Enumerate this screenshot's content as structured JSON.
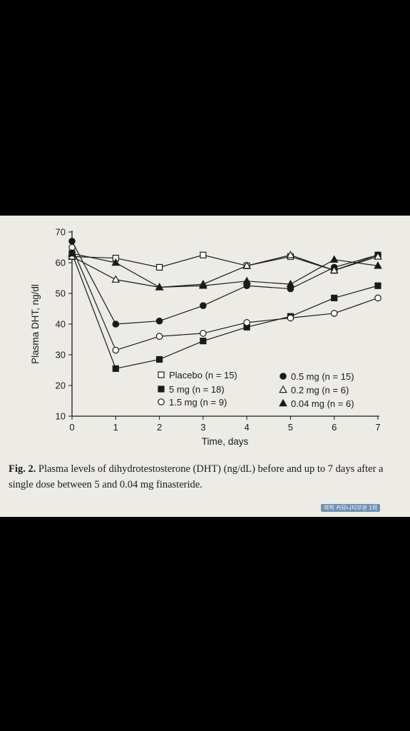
{
  "colors": {
    "background": "#000000",
    "paper": "#ecebe6",
    "ink": "#1a1a1a"
  },
  "chart_data": {
    "type": "line",
    "title": "",
    "xlabel": "Time, days",
    "ylabel": "Plasma DHT, ng/dl",
    "xlim": [
      0,
      7
    ],
    "ylim": [
      10,
      70
    ],
    "xticks": [
      "0",
      "1",
      "2",
      "3",
      "4",
      "5",
      "6",
      "7"
    ],
    "yticks": [
      "10",
      "20",
      "30",
      "40",
      "50",
      "60",
      "70"
    ],
    "x": [
      0,
      1,
      2,
      3,
      4,
      5,
      6,
      7
    ],
    "legend_position": "inside-bottom",
    "grid": false,
    "series": [
      {
        "name": "Placebo (n = 15)",
        "marker": "square-open",
        "values": [
          62,
          61.5,
          58.5,
          62.5,
          59,
          62,
          57.5,
          62.5
        ]
      },
      {
        "name": "5 mg (n = 18)",
        "marker": "square-filled",
        "values": [
          63,
          25.5,
          28.5,
          34.5,
          39,
          42.5,
          48.5,
          52.5
        ]
      },
      {
        "name": "1.5 mg (n = 9)",
        "marker": "circle-open",
        "values": [
          65,
          31.5,
          36,
          37,
          40.5,
          42,
          43.5,
          48.5
        ]
      },
      {
        "name": "0.5 mg (n = 15)",
        "marker": "circle-filled",
        "values": [
          67,
          40,
          41,
          46,
          52.5,
          51.5,
          58.5,
          62.5
        ]
      },
      {
        "name": "0.2 mg (n = 6)",
        "marker": "triangle-open",
        "values": [
          62,
          54.5,
          52,
          53,
          59,
          62.5,
          57.5,
          62
        ]
      },
      {
        "name": "0.04 mg (n = 6)",
        "marker": "triangle-filled",
        "values": [
          63,
          60,
          52,
          52.5,
          54,
          53,
          61,
          59
        ]
      }
    ]
  },
  "caption": {
    "label": "Fig. 2.",
    "text": "Plasma levels of dihydrotestosterone (DHT) (ng/dL) before and up to 7 days after a single dose between 5 and 0.04 mg finasteride."
  },
  "watermark": "의학 커뮤니티부분 1위"
}
